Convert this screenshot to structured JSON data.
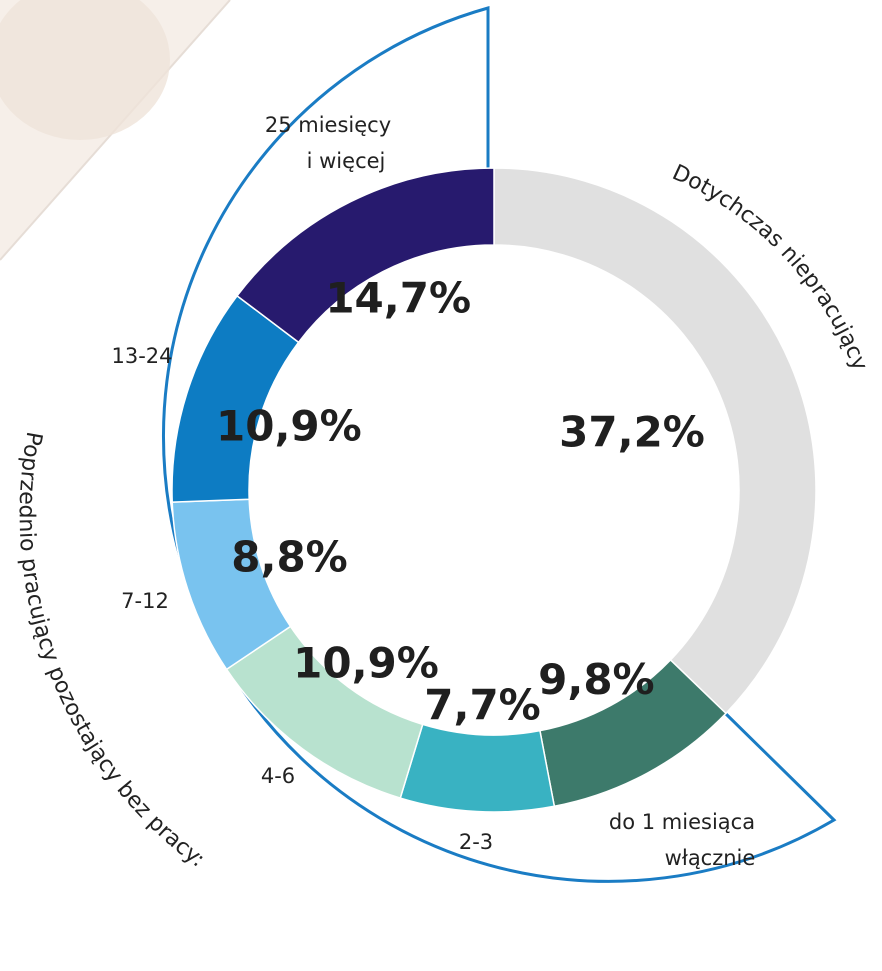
{
  "chart_data": {
    "type": "donut",
    "slices": [
      {
        "label": "Dotychczas niepracujący",
        "value": 37.2,
        "value_label": "37,2%",
        "color": "#e0e0e0"
      },
      {
        "label": "do 1 miesiąca włącznie",
        "value": 9.8,
        "value_label": "9,8%",
        "color": "#3d7a6b"
      },
      {
        "label": "2-3",
        "value": 7.7,
        "value_label": "7,7%",
        "color": "#39b2c2"
      },
      {
        "label": "4-6",
        "value": 10.9,
        "value_label": "10,9%",
        "color": "#b8e2cf"
      },
      {
        "label": "7-12",
        "value": 8.8,
        "value_label": "8,8%",
        "color": "#79c3ef"
      },
      {
        "label": "13-24",
        "value": 10.9,
        "value_label": "10,9%",
        "color": "#0d7cc3"
      },
      {
        "label": "25 miesięcy i więcej",
        "value": 14.7,
        "value_label": "14,7%",
        "color": "#271a6e"
      }
    ],
    "group_labels": {
      "never_worked": "Dotychczas niepracujący",
      "previously_worked": "Poprzednio pracujący pozostający bez pracy:"
    },
    "category_labels": {
      "c25_line1": "25 miesięcy",
      "c25_line2": "i więcej",
      "c13_24": "13-24",
      "c7_12": "7-12",
      "c4_6": "4-6",
      "c2_3": "2-3",
      "c1_line1": "do 1 miesiąca",
      "c1_line2": "włącznie"
    },
    "bracket_color": "#1a7cc4"
  }
}
